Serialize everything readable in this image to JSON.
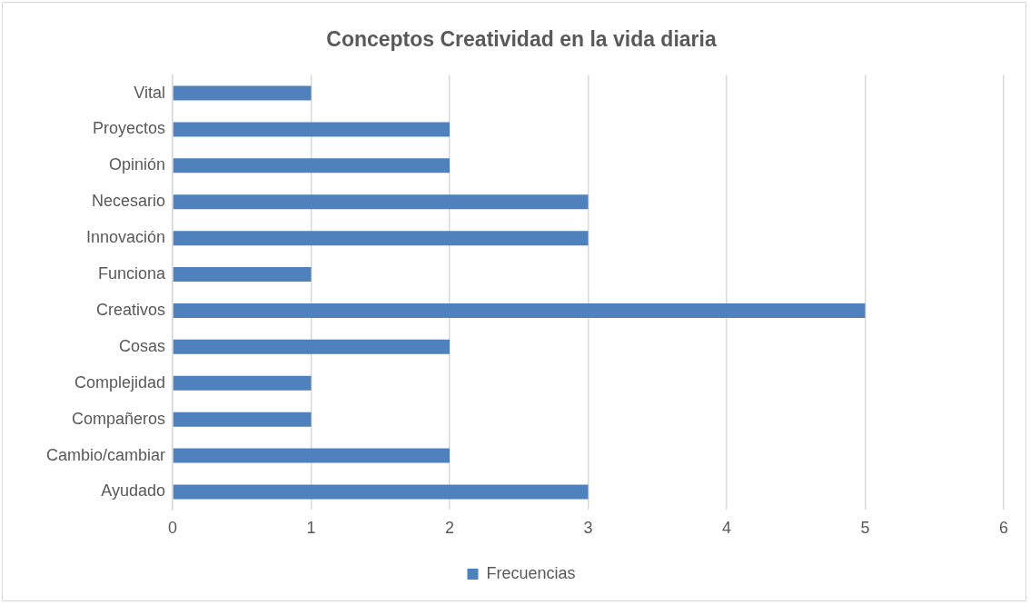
{
  "chart_data": {
    "type": "bar",
    "orientation": "horizontal",
    "title": "Conceptos Creatividad en la vida diaria",
    "categories": [
      "Vital",
      "Proyectos",
      "Opinión",
      "Necesario",
      "Innovación",
      "Funciona",
      "Creativos",
      "Cosas",
      "Complejidad",
      "Compañeros",
      "Cambio/cambiar",
      "Ayudado"
    ],
    "series": [
      {
        "name": "Frecuencias",
        "color": "#4f81bd",
        "values": [
          1,
          2,
          2,
          3,
          3,
          1,
          5,
          2,
          1,
          1,
          2,
          3
        ]
      }
    ],
    "xlim": [
      0,
      6
    ],
    "xticks": [
      0,
      1,
      2,
      3,
      4,
      5,
      6
    ],
    "grid": "x",
    "legend": "bottom"
  }
}
